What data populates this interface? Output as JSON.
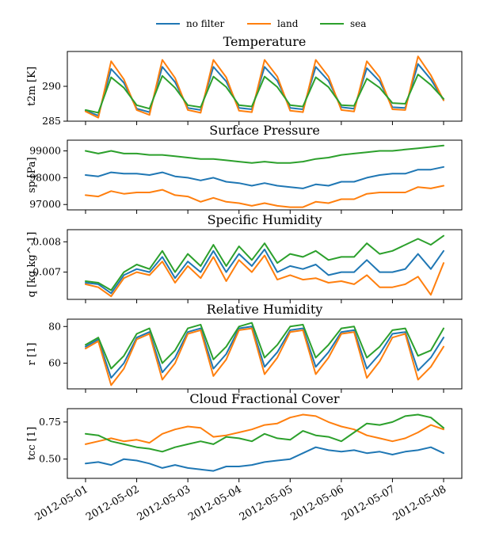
{
  "legend": [
    {
      "name": "no filter",
      "color": "#1f77b4"
    },
    {
      "name": "land",
      "color": "#ff7f0e"
    },
    {
      "name": "sea",
      "color": "#2ca02c"
    }
  ],
  "chart_data": [
    {
      "type": "line",
      "title": "Temperature",
      "ylabel": "t2m [K]",
      "xlabel": "",
      "ylim": [
        285,
        295
      ],
      "yticks": [
        285,
        290
      ],
      "yticklabels": [
        "285",
        "290"
      ],
      "grid": false,
      "legend_placement": "top-center",
      "x": [
        "2012-05-01",
        "2012-05-01 06:00",
        "2012-05-01 12:00",
        "2012-05-01 18:00",
        "2012-05-02",
        "2012-05-02 06:00",
        "2012-05-02 12:00",
        "2012-05-02 18:00",
        "2012-05-03",
        "2012-05-03 06:00",
        "2012-05-03 12:00",
        "2012-05-03 18:00",
        "2012-05-04",
        "2012-05-04 06:00",
        "2012-05-04 12:00",
        "2012-05-04 18:00",
        "2012-05-05",
        "2012-05-05 06:00",
        "2012-05-05 12:00",
        "2012-05-05 18:00",
        "2012-05-06",
        "2012-05-06 06:00",
        "2012-05-06 12:00",
        "2012-05-06 18:00",
        "2012-05-07",
        "2012-05-07 06:00",
        "2012-05-07 12:00",
        "2012-05-07 18:00",
        "2012-05-08"
      ],
      "series": [
        {
          "name": "no filter",
          "color": "#1f77b4",
          "values": [
            286.5,
            285.8,
            292.5,
            290.5,
            286.8,
            286.3,
            292.8,
            290.6,
            286.9,
            286.6,
            292.8,
            290.7,
            286.9,
            286.7,
            292.8,
            290.8,
            286.9,
            286.7,
            292.8,
            290.8,
            287.0,
            286.8,
            292.6,
            290.7,
            287.0,
            286.9,
            293.2,
            291.0,
            288.0
          ]
        },
        {
          "name": "land",
          "color": "#ff7f0e",
          "values": [
            286.4,
            285.5,
            293.6,
            291.0,
            286.6,
            285.9,
            293.8,
            291.2,
            286.6,
            286.2,
            293.8,
            291.3,
            286.5,
            286.3,
            293.8,
            291.4,
            286.5,
            286.3,
            293.8,
            291.4,
            286.6,
            286.4,
            293.6,
            291.3,
            286.7,
            286.6,
            294.3,
            291.6,
            288.0
          ]
        },
        {
          "name": "sea",
          "color": "#2ca02c",
          "values": [
            286.6,
            286.2,
            291.3,
            289.8,
            287.3,
            286.8,
            291.5,
            289.8,
            287.3,
            287.0,
            291.4,
            289.9,
            287.3,
            287.1,
            291.4,
            289.9,
            287.3,
            287.1,
            291.3,
            289.9,
            287.3,
            287.2,
            291.1,
            289.8,
            287.6,
            287.5,
            291.7,
            290.2,
            288.2
          ]
        }
      ]
    },
    {
      "type": "line",
      "title": "Surface Pressure",
      "ylabel": "sp [Pa]",
      "xlabel": "",
      "ylim": [
        96800,
        99400
      ],
      "yticks": [
        97000,
        98000,
        99000
      ],
      "yticklabels": [
        "97000",
        "98000",
        "99000"
      ],
      "grid": false,
      "x": [
        "2012-05-01",
        "2012-05-01 06:00",
        "2012-05-01 12:00",
        "2012-05-01 18:00",
        "2012-05-02",
        "2012-05-02 06:00",
        "2012-05-02 12:00",
        "2012-05-02 18:00",
        "2012-05-03",
        "2012-05-03 06:00",
        "2012-05-03 12:00",
        "2012-05-03 18:00",
        "2012-05-04",
        "2012-05-04 06:00",
        "2012-05-04 12:00",
        "2012-05-04 18:00",
        "2012-05-05",
        "2012-05-05 06:00",
        "2012-05-05 12:00",
        "2012-05-05 18:00",
        "2012-05-06",
        "2012-05-06 06:00",
        "2012-05-06 12:00",
        "2012-05-06 18:00",
        "2012-05-07",
        "2012-05-07 06:00",
        "2012-05-07 12:00",
        "2012-05-07 18:00",
        "2012-05-08"
      ],
      "series": [
        {
          "name": "no filter",
          "color": "#1f77b4",
          "values": [
            98100,
            98050,
            98200,
            98150,
            98150,
            98100,
            98200,
            98050,
            98000,
            97900,
            98000,
            97850,
            97800,
            97700,
            97800,
            97700,
            97650,
            97600,
            97750,
            97700,
            97850,
            97850,
            98000,
            98100,
            98150,
            98150,
            98300,
            98300,
            98400
          ]
        },
        {
          "name": "land",
          "color": "#ff7f0e",
          "values": [
            97350,
            97300,
            97500,
            97400,
            97450,
            97450,
            97550,
            97350,
            97300,
            97100,
            97250,
            97100,
            97050,
            96950,
            97050,
            96950,
            96900,
            96900,
            97100,
            97050,
            97200,
            97200,
            97400,
            97450,
            97450,
            97450,
            97650,
            97600,
            97700
          ]
        },
        {
          "name": "sea",
          "color": "#2ca02c",
          "values": [
            99000,
            98900,
            99000,
            98900,
            98900,
            98850,
            98850,
            98800,
            98750,
            98700,
            98700,
            98650,
            98600,
            98550,
            98600,
            98550,
            98550,
            98600,
            98700,
            98750,
            98850,
            98900,
            98950,
            99000,
            99000,
            99050,
            99100,
            99150,
            99200
          ]
        }
      ]
    },
    {
      "type": "line",
      "title": "Specific Humidity",
      "ylabel": "q [kg kg^-1]",
      "xlabel": "",
      "ylim": [
        0.0061,
        0.0084
      ],
      "yticks": [
        0.007,
        0.008
      ],
      "yticklabels": [
        "0.007",
        "0.008"
      ],
      "grid": false,
      "x": [
        "2012-05-01",
        "2012-05-01 06:00",
        "2012-05-01 12:00",
        "2012-05-01 18:00",
        "2012-05-02",
        "2012-05-02 06:00",
        "2012-05-02 12:00",
        "2012-05-02 18:00",
        "2012-05-03",
        "2012-05-03 06:00",
        "2012-05-03 12:00",
        "2012-05-03 18:00",
        "2012-05-04",
        "2012-05-04 06:00",
        "2012-05-04 12:00",
        "2012-05-04 18:00",
        "2012-05-05",
        "2012-05-05 06:00",
        "2012-05-05 12:00",
        "2012-05-05 18:00",
        "2012-05-06",
        "2012-05-06 06:00",
        "2012-05-06 12:00",
        "2012-05-06 18:00",
        "2012-05-07",
        "2012-05-07 06:00",
        "2012-05-07 12:00",
        "2012-05-07 18:00",
        "2012-05-08"
      ],
      "series": [
        {
          "name": "no filter",
          "color": "#1f77b4",
          "values": [
            0.00665,
            0.0066,
            0.0063,
            0.0069,
            0.0071,
            0.007,
            0.0075,
            0.0068,
            0.00735,
            0.007,
            0.0077,
            0.007,
            0.0076,
            0.0072,
            0.00775,
            0.007,
            0.0072,
            0.0071,
            0.00725,
            0.0069,
            0.007,
            0.007,
            0.0074,
            0.007,
            0.007,
            0.0071,
            0.0076,
            0.0071,
            0.0077
          ]
        },
        {
          "name": "land",
          "color": "#ff7f0e",
          "values": [
            0.0066,
            0.0065,
            0.0062,
            0.0068,
            0.007,
            0.0069,
            0.00735,
            0.00665,
            0.0072,
            0.0068,
            0.0075,
            0.0067,
            0.0074,
            0.007,
            0.00755,
            0.00675,
            0.0069,
            0.00675,
            0.0068,
            0.00665,
            0.0067,
            0.0066,
            0.0069,
            0.0065,
            0.0065,
            0.0066,
            0.00685,
            0.00625,
            0.0073
          ]
        },
        {
          "name": "sea",
          "color": "#2ca02c",
          "values": [
            0.0067,
            0.00665,
            0.0064,
            0.007,
            0.00725,
            0.0071,
            0.0077,
            0.007,
            0.0076,
            0.0072,
            0.0079,
            0.0072,
            0.00785,
            0.0074,
            0.00795,
            0.0073,
            0.0076,
            0.0075,
            0.0077,
            0.0074,
            0.0075,
            0.0075,
            0.00795,
            0.0076,
            0.0077,
            0.0079,
            0.0081,
            0.0079,
            0.0082
          ]
        }
      ]
    },
    {
      "type": "line",
      "title": "Relative Humidity",
      "ylabel": "r [1]",
      "xlabel": "",
      "ylim": [
        46,
        84
      ],
      "yticks": [
        60,
        80
      ],
      "yticklabels": [
        "60",
        "80"
      ],
      "grid": false,
      "x": [
        "2012-05-01",
        "2012-05-01 06:00",
        "2012-05-01 12:00",
        "2012-05-01 18:00",
        "2012-05-02",
        "2012-05-02 06:00",
        "2012-05-02 12:00",
        "2012-05-02 18:00",
        "2012-05-03",
        "2012-05-03 06:00",
        "2012-05-03 12:00",
        "2012-05-03 18:00",
        "2012-05-04",
        "2012-05-04 06:00",
        "2012-05-04 12:00",
        "2012-05-04 18:00",
        "2012-05-05",
        "2012-05-05 06:00",
        "2012-05-05 12:00",
        "2012-05-05 18:00",
        "2012-05-06",
        "2012-05-06 06:00",
        "2012-05-06 12:00",
        "2012-05-06 18:00",
        "2012-05-07",
        "2012-05-07 06:00",
        "2012-05-07 12:00",
        "2012-05-07 18:00",
        "2012-05-08"
      ],
      "series": [
        {
          "name": "no filter",
          "color": "#1f77b4",
          "values": [
            69,
            73,
            52,
            60,
            74,
            77,
            55,
            63,
            77,
            79,
            57,
            65,
            79,
            80,
            58,
            66,
            78,
            79,
            58,
            66,
            77,
            78,
            57,
            65,
            76,
            77,
            56,
            63,
            74
          ]
        },
        {
          "name": "land",
          "color": "#ff7f0e",
          "values": [
            68,
            72,
            48,
            57,
            73,
            76,
            51,
            60,
            76,
            78,
            53,
            62,
            78,
            79,
            54,
            63,
            77,
            78,
            54,
            63,
            76,
            77,
            52,
            61,
            74,
            76,
            51,
            58,
            69
          ]
        },
        {
          "name": "sea",
          "color": "#2ca02c",
          "values": [
            70,
            74,
            57,
            64,
            76,
            79,
            60,
            67,
            79,
            81,
            62,
            69,
            80,
            82,
            63,
            70,
            80,
            81,
            63,
            70,
            79,
            80,
            63,
            69,
            78,
            79,
            64,
            67,
            79
          ]
        }
      ]
    },
    {
      "type": "line",
      "title": "Cloud Fractional Cover",
      "ylabel": "tcc [1]",
      "xlabel": "",
      "ylim": [
        0.37,
        0.84
      ],
      "yticks": [
        0.5,
        0.75
      ],
      "yticklabels": [
        "0.50",
        "0.75"
      ],
      "grid": false,
      "x": [
        "2012-05-01",
        "2012-05-01 06:00",
        "2012-05-01 12:00",
        "2012-05-01 18:00",
        "2012-05-02",
        "2012-05-02 06:00",
        "2012-05-02 12:00",
        "2012-05-02 18:00",
        "2012-05-03",
        "2012-05-03 06:00",
        "2012-05-03 12:00",
        "2012-05-03 18:00",
        "2012-05-04",
        "2012-05-04 06:00",
        "2012-05-04 12:00",
        "2012-05-04 18:00",
        "2012-05-05",
        "2012-05-05 06:00",
        "2012-05-05 12:00",
        "2012-05-05 18:00",
        "2012-05-06",
        "2012-05-06 06:00",
        "2012-05-06 12:00",
        "2012-05-06 18:00",
        "2012-05-07",
        "2012-05-07 06:00",
        "2012-05-07 12:00",
        "2012-05-07 18:00",
        "2012-05-08"
      ],
      "series": [
        {
          "name": "no filter",
          "color": "#1f77b4",
          "values": [
            0.47,
            0.48,
            0.46,
            0.5,
            0.49,
            0.47,
            0.44,
            0.46,
            0.44,
            0.43,
            0.42,
            0.45,
            0.45,
            0.46,
            0.48,
            0.49,
            0.5,
            0.54,
            0.58,
            0.56,
            0.55,
            0.56,
            0.54,
            0.55,
            0.53,
            0.55,
            0.56,
            0.58,
            0.54
          ]
        },
        {
          "name": "land",
          "color": "#ff7f0e",
          "values": [
            0.6,
            0.62,
            0.64,
            0.62,
            0.63,
            0.61,
            0.67,
            0.7,
            0.72,
            0.71,
            0.65,
            0.66,
            0.68,
            0.7,
            0.73,
            0.74,
            0.78,
            0.8,
            0.79,
            0.75,
            0.72,
            0.7,
            0.66,
            0.64,
            0.62,
            0.64,
            0.68,
            0.73,
            0.7
          ]
        },
        {
          "name": "sea",
          "color": "#2ca02c",
          "values": [
            0.67,
            0.66,
            0.62,
            0.6,
            0.58,
            0.57,
            0.55,
            0.58,
            0.6,
            0.62,
            0.6,
            0.65,
            0.64,
            0.62,
            0.67,
            0.64,
            0.63,
            0.69,
            0.66,
            0.65,
            0.62,
            0.68,
            0.74,
            0.73,
            0.75,
            0.79,
            0.8,
            0.78,
            0.71
          ]
        }
      ]
    }
  ],
  "xaxis": {
    "ticks": [
      "2012-05-01",
      "2012-05-02",
      "2012-05-03",
      "2012-05-04",
      "2012-05-05",
      "2012-05-06",
      "2012-05-07",
      "2012-05-08"
    ]
  }
}
